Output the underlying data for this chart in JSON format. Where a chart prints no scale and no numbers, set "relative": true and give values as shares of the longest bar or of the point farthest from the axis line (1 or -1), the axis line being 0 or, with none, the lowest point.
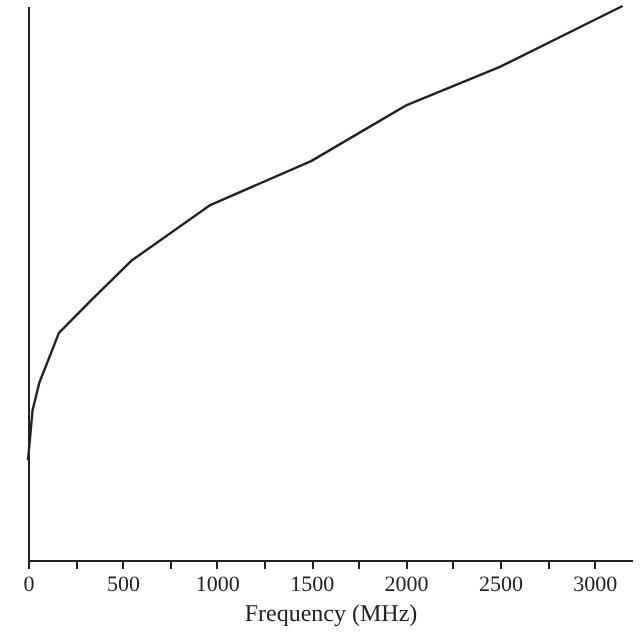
{
  "chart_data": {
    "type": "line",
    "xlabel": "Frequency (MHz)",
    "relative": true,
    "x": [
      0,
      24,
      60,
      164,
      338,
      547,
      962,
      1500,
      1800,
      2000,
      2500,
      3150
    ],
    "series": [
      {
        "color": "#222222",
        "values": [
          0.18,
          0.27,
          0.32,
          0.41,
          0.47,
          0.54,
          0.64,
          0.72,
          0.78,
          0.82,
          0.89,
          1.0
        ]
      }
    ],
    "xlim": [
      0,
      3200
    ],
    "xticks": [
      0,
      {
        "value": 250,
        "label": null
      },
      500,
      {
        "value": 750,
        "label": null
      },
      1000,
      {
        "value": 1250,
        "label": null
      },
      1500,
      {
        "value": 1750,
        "label": null
      },
      2000,
      {
        "value": 2250,
        "label": null
      },
      2500,
      {
        "value": 2750,
        "label": null
      },
      3000
    ],
    "marker": "none",
    "line_style": "solid",
    "grid": false
  }
}
